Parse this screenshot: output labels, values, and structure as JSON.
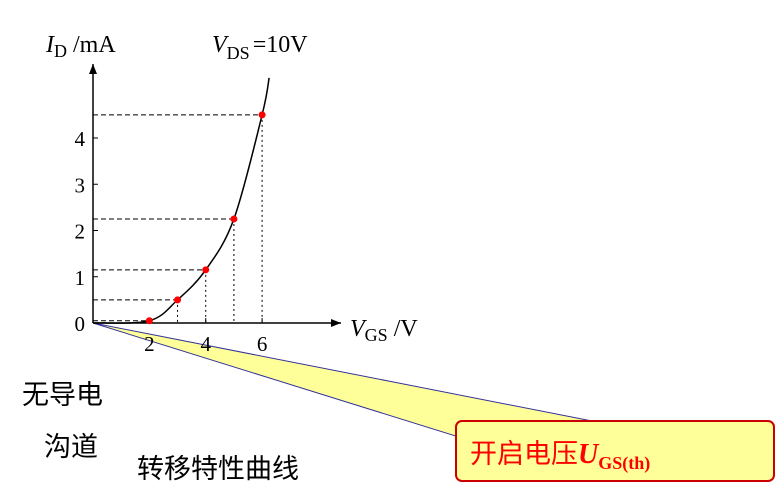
{
  "chart_data": {
    "type": "line",
    "y_label": {
      "symbol": "I",
      "subscript": "D",
      "unit": "/mA"
    },
    "x_label": {
      "symbol": "V",
      "subscript": "GS",
      "unit": "/V"
    },
    "curve_label": {
      "symbol": "V",
      "subscript": "DS",
      "text": "=10V"
    },
    "curve": {
      "x": [
        0,
        2,
        3,
        4,
        5,
        6,
        6.25
      ],
      "values": [
        0,
        0.05,
        0.5,
        1.15,
        2.25,
        4.5,
        5.3
      ],
      "color": "#000000"
    },
    "points": {
      "x": [
        2,
        3,
        4,
        5,
        6
      ],
      "values": [
        0.05,
        0.5,
        1.15,
        2.25,
        4.5
      ],
      "color": "#ff0000"
    },
    "xlim": [
      0,
      8.8
    ],
    "ylim": [
      0,
      5.6
    ],
    "xticks": [
      2,
      4,
      6
    ],
    "yticks": [
      0,
      1,
      2,
      3,
      4
    ]
  },
  "annotations": {
    "no_channel": [
      "无导电",
      "沟道"
    ],
    "caption": "转移特性曲线",
    "callout": {
      "text": "开启电压",
      "symbol": "U",
      "subscript": "GS(th)"
    }
  }
}
